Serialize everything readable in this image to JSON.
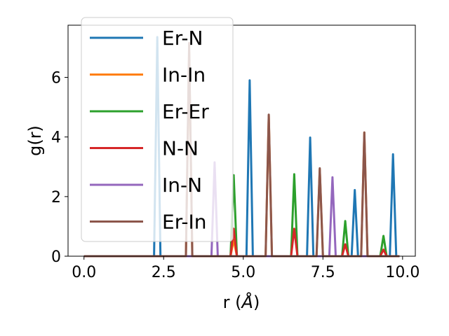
{
  "chart_data": {
    "type": "line",
    "xlabel": "r (",
    "xlabel_unit": "Å",
    "xlabel_close": ")",
    "ylabel": "g(r)",
    "xlim": [
      -0.5,
      10.4
    ],
    "ylim": [
      0,
      7.75
    ],
    "x_ticks": [
      0.0,
      2.5,
      5.0,
      7.5,
      10.0
    ],
    "x_tick_labels": [
      "0.0",
      "2.5",
      "5.0",
      "7.5",
      "10.0"
    ],
    "y_ticks": [
      0,
      2,
      4,
      6
    ],
    "y_tick_labels": [
      "0",
      "2",
      "4",
      "6"
    ],
    "grid": false,
    "legend_position": "top-left",
    "line_domain": [
      0.0,
      9.9
    ],
    "series": [
      {
        "name": "Er-N",
        "color": "#1f77b4",
        "peaks": [
          [
            2.3,
            7.35
          ],
          [
            5.2,
            5.9
          ],
          [
            7.1,
            3.98
          ],
          [
            8.5,
            2.22
          ],
          [
            9.7,
            3.42
          ]
        ]
      },
      {
        "name": "In-In",
        "color": "#ff7f0e",
        "peaks": [
          [
            3.3,
            6.85
          ],
          [
            4.7,
            0.55
          ],
          [
            5.8,
            4.72
          ],
          [
            7.4,
            2.92
          ],
          [
            8.8,
            4.15
          ]
        ]
      },
      {
        "name": "Er-Er",
        "color": "#2ca02c",
        "peaks": [
          [
            4.7,
            2.72
          ],
          [
            6.6,
            2.75
          ],
          [
            8.2,
            1.18
          ],
          [
            9.4,
            0.68
          ]
        ]
      },
      {
        "name": "N-N",
        "color": "#d62728",
        "peaks": [
          [
            4.7,
            0.92
          ],
          [
            6.6,
            0.92
          ],
          [
            8.2,
            0.4
          ],
          [
            9.4,
            0.22
          ]
        ]
      },
      {
        "name": "In-N",
        "color": "#9467bd",
        "peaks": [
          [
            4.1,
            3.15
          ],
          [
            7.8,
            2.65
          ]
        ]
      },
      {
        "name": "Er-In",
        "color": "#8c564b",
        "peaks": [
          [
            3.3,
            7.15
          ],
          [
            5.8,
            4.75
          ],
          [
            7.4,
            2.95
          ],
          [
            8.8,
            4.15
          ]
        ]
      }
    ]
  }
}
